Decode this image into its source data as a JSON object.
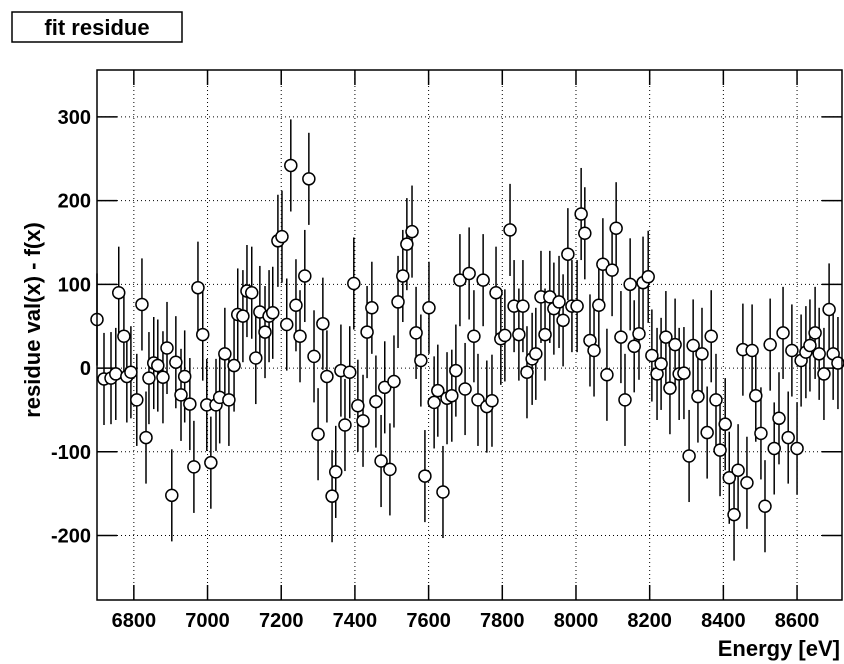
{
  "chart_data": {
    "type": "errorbar-scatter",
    "title": "fit residue",
    "x_label": "Energy [eV]",
    "y_label": "residue val(x) - f(x)",
    "xlim": [
      6700,
      8722
    ],
    "ylim": [
      -277,
      356
    ],
    "xticks": [
      6800,
      7000,
      7200,
      7400,
      7600,
      7800,
      8000,
      8200,
      8400,
      8600
    ],
    "yticks": [
      -200,
      -100,
      0,
      100,
      200,
      300
    ],
    "grid": true,
    "color": "#000000",
    "error": 55,
    "x": [
      6700,
      6719,
      6738,
      6751,
      6759,
      6773,
      6781,
      6792,
      6808,
      6822,
      6833,
      6841,
      6854,
      6865,
      6879,
      6890,
      6903,
      6914,
      6928,
      6938,
      6952,
      6963,
      6974,
      6987,
      6998,
      7009,
      7023,
      7033,
      7047,
      7058,
      7072,
      7082,
      7096,
      7107,
      7120,
      7131,
      7142,
      7156,
      7167,
      7177,
      7191,
      7202,
      7215,
      7226,
      7240,
      7251,
      7264,
      7275,
      7289,
      7300,
      7313,
      7324,
      7338,
      7348,
      7362,
      7373,
      7386,
      7397,
      7408,
      7422,
      7433,
      7446,
      7457,
      7471,
      7481,
      7495,
      7506,
      7517,
      7530,
      7541,
      7555,
      7566,
      7579,
      7590,
      7601,
      7615,
      7625,
      7639,
      7650,
      7663,
      7674,
      7685,
      7699,
      7710,
      7723,
      7734,
      7748,
      7758,
      7772,
      7783,
      7796,
      7807,
      7821,
      7832,
      7845,
      7856,
      7867,
      7881,
      7891,
      7905,
      7916,
      7929,
      7940,
      7954,
      7965,
      7978,
      7989,
      8003,
      8014,
      8024,
      8038,
      8049,
      8062,
      8073,
      8084,
      8098,
      8109,
      8122,
      8133,
      8147,
      8158,
      8171,
      8182,
      8196,
      8206,
      8220,
      8231,
      8244,
      8255,
      8269,
      8280,
      8293,
      8307,
      8318,
      8331,
      8342,
      8356,
      8367,
      8380,
      8391,
      8405,
      8416,
      8429,
      8440,
      8453,
      8464,
      8478,
      8488,
      8502,
      8513,
      8527,
      8538,
      8551,
      8562,
      8576,
      8586,
      8600,
      8611,
      8624,
      8635,
      8649,
      8660,
      8673,
      8687,
      8698,
      8711
    ],
    "values": [
      58,
      -13,
      -12,
      -7,
      90,
      38,
      -10,
      -5,
      -38,
      76,
      -83,
      -12,
      6,
      3,
      -11,
      24,
      -152,
      7,
      -32,
      -10,
      -43,
      -118,
      96,
      40,
      -44,
      -113,
      -44,
      -35,
      17,
      -38,
      3,
      64,
      62,
      92,
      90,
      12,
      67,
      43,
      62,
      66,
      152,
      157,
      52,
      242,
      75,
      38,
      110,
      226,
      14,
      -79,
      53,
      -10,
      -153,
      -124,
      -3,
      -68,
      -5,
      101,
      -45,
      -63,
      43,
      72,
      -40,
      -111,
      -23,
      -121,
      -16,
      79,
      110,
      148,
      163,
      42,
      9,
      -129,
      72,
      -41,
      -27,
      -148,
      -36,
      -33,
      -3,
      105,
      -25,
      113,
      38,
      -38,
      105,
      -46,
      -39,
      90,
      35,
      39,
      165,
      74,
      40,
      74,
      -5,
      11,
      17,
      85,
      40,
      85,
      71,
      79,
      57,
      136,
      74,
      74,
      184,
      161,
      33,
      21,
      75,
      124,
      -8,
      117,
      167,
      37,
      -38,
      100,
      26,
      41,
      102,
      109,
      15,
      -7,
      5,
      37,
      -24,
      28,
      -7,
      -6,
      -105,
      27,
      -34,
      17,
      -77,
      38,
      -38,
      -98,
      -67,
      -131,
      -175,
      -122,
      22,
      -137,
      21,
      -33,
      -78,
      -165,
      28,
      -96,
      -60,
      42,
      -83,
      21,
      -96,
      9,
      19,
      27,
      42,
      17,
      -7,
      70,
      17,
      6
    ]
  }
}
